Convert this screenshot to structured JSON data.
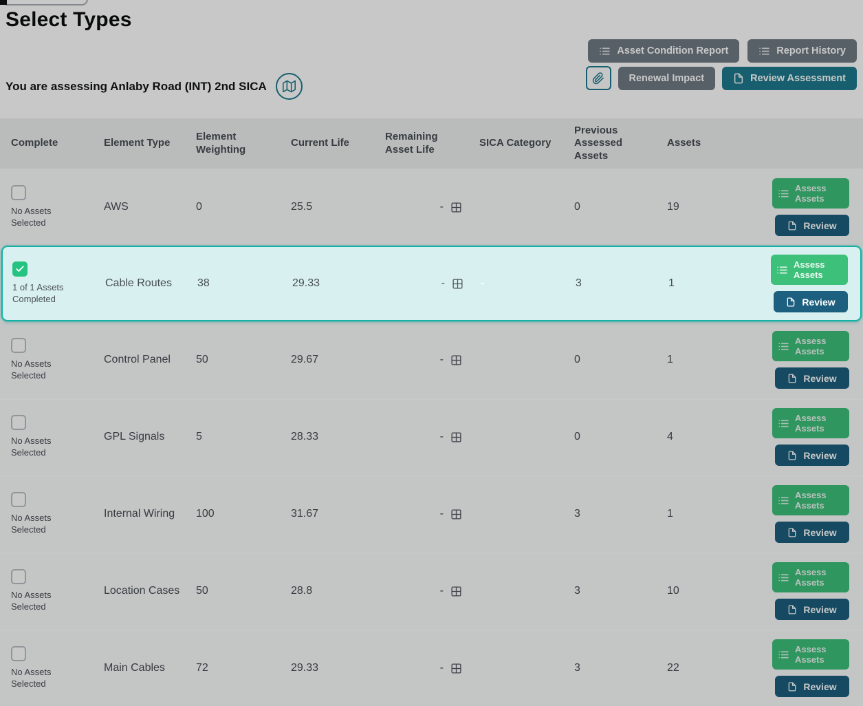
{
  "page": {
    "title": "Select Types",
    "assessing_text": "You are assessing Anlaby Road (INT) 2nd SICA"
  },
  "toolbar": {
    "asset_condition_report_label": "Asset Condition Report",
    "report_history_label": "Report History",
    "renewal_impact_label": "Renewal Impact",
    "review_assessment_label": "Review Assessment",
    "attachment_icon": "paperclip-icon",
    "map_icon": "map-icon"
  },
  "table": {
    "headers": {
      "complete": "Complete",
      "element_type": "Element Type",
      "element_weighting": "Element Weighting",
      "current_life": "Current Life",
      "remaining_asset_life": "Remaining Asset Life",
      "sica_category": "SICA Category",
      "previous_assessed_assets": "Previous Assessed Assets",
      "assets": "Assets"
    },
    "actions": {
      "assess_label": "Assess Assets",
      "review_label": "Review"
    },
    "rows": [
      {
        "complete": false,
        "selected": false,
        "status": "No Assets Selected",
        "element_type": "AWS",
        "element_weighting": "0",
        "current_life": "25.5",
        "remaining_asset_life": "-",
        "sica_category": "",
        "previous_assessed_assets": "0",
        "assets": "19"
      },
      {
        "complete": true,
        "selected": true,
        "status": "1 of 1 Assets Completed",
        "element_type": "Cable Routes",
        "element_weighting": "38",
        "current_life": "29.33",
        "remaining_asset_life": "-",
        "sica_category": "-",
        "previous_assessed_assets": "3",
        "assets": "1"
      },
      {
        "complete": false,
        "selected": false,
        "status": "No Assets Selected",
        "element_type": "Control Panel",
        "element_weighting": "50",
        "current_life": "29.67",
        "remaining_asset_life": "-",
        "sica_category": "",
        "previous_assessed_assets": "0",
        "assets": "1"
      },
      {
        "complete": false,
        "selected": false,
        "status": "No Assets Selected",
        "element_type": "GPL Signals",
        "element_weighting": "5",
        "current_life": "28.33",
        "remaining_asset_life": "-",
        "sica_category": "",
        "previous_assessed_assets": "0",
        "assets": "4"
      },
      {
        "complete": false,
        "selected": false,
        "status": "No Assets Selected",
        "element_type": "Internal Wiring",
        "element_weighting": "100",
        "current_life": "31.67",
        "remaining_asset_life": "-",
        "sica_category": "",
        "previous_assessed_assets": "3",
        "assets": "1"
      },
      {
        "complete": false,
        "selected": false,
        "status": "No Assets Selected",
        "element_type": "Location Cases",
        "element_weighting": "50",
        "current_life": "28.8",
        "remaining_asset_life": "-",
        "sica_category": "",
        "previous_assessed_assets": "3",
        "assets": "10"
      },
      {
        "complete": false,
        "selected": false,
        "status": "No Assets Selected",
        "element_type": "Main Cables",
        "element_weighting": "72",
        "current_life": "29.33",
        "remaining_asset_life": "-",
        "sica_category": "",
        "previous_assessed_assets": "3",
        "assets": "22"
      }
    ]
  },
  "colors": {
    "accent_teal": "#1e7a8d",
    "selected_border": "#15b3a7",
    "selected_bg": "#d9f0f0",
    "success_green": "#3cc07a",
    "review_blue": "#1c5f7e",
    "secondary_gray": "#717b84",
    "checkbox_checked": "#25c381"
  }
}
